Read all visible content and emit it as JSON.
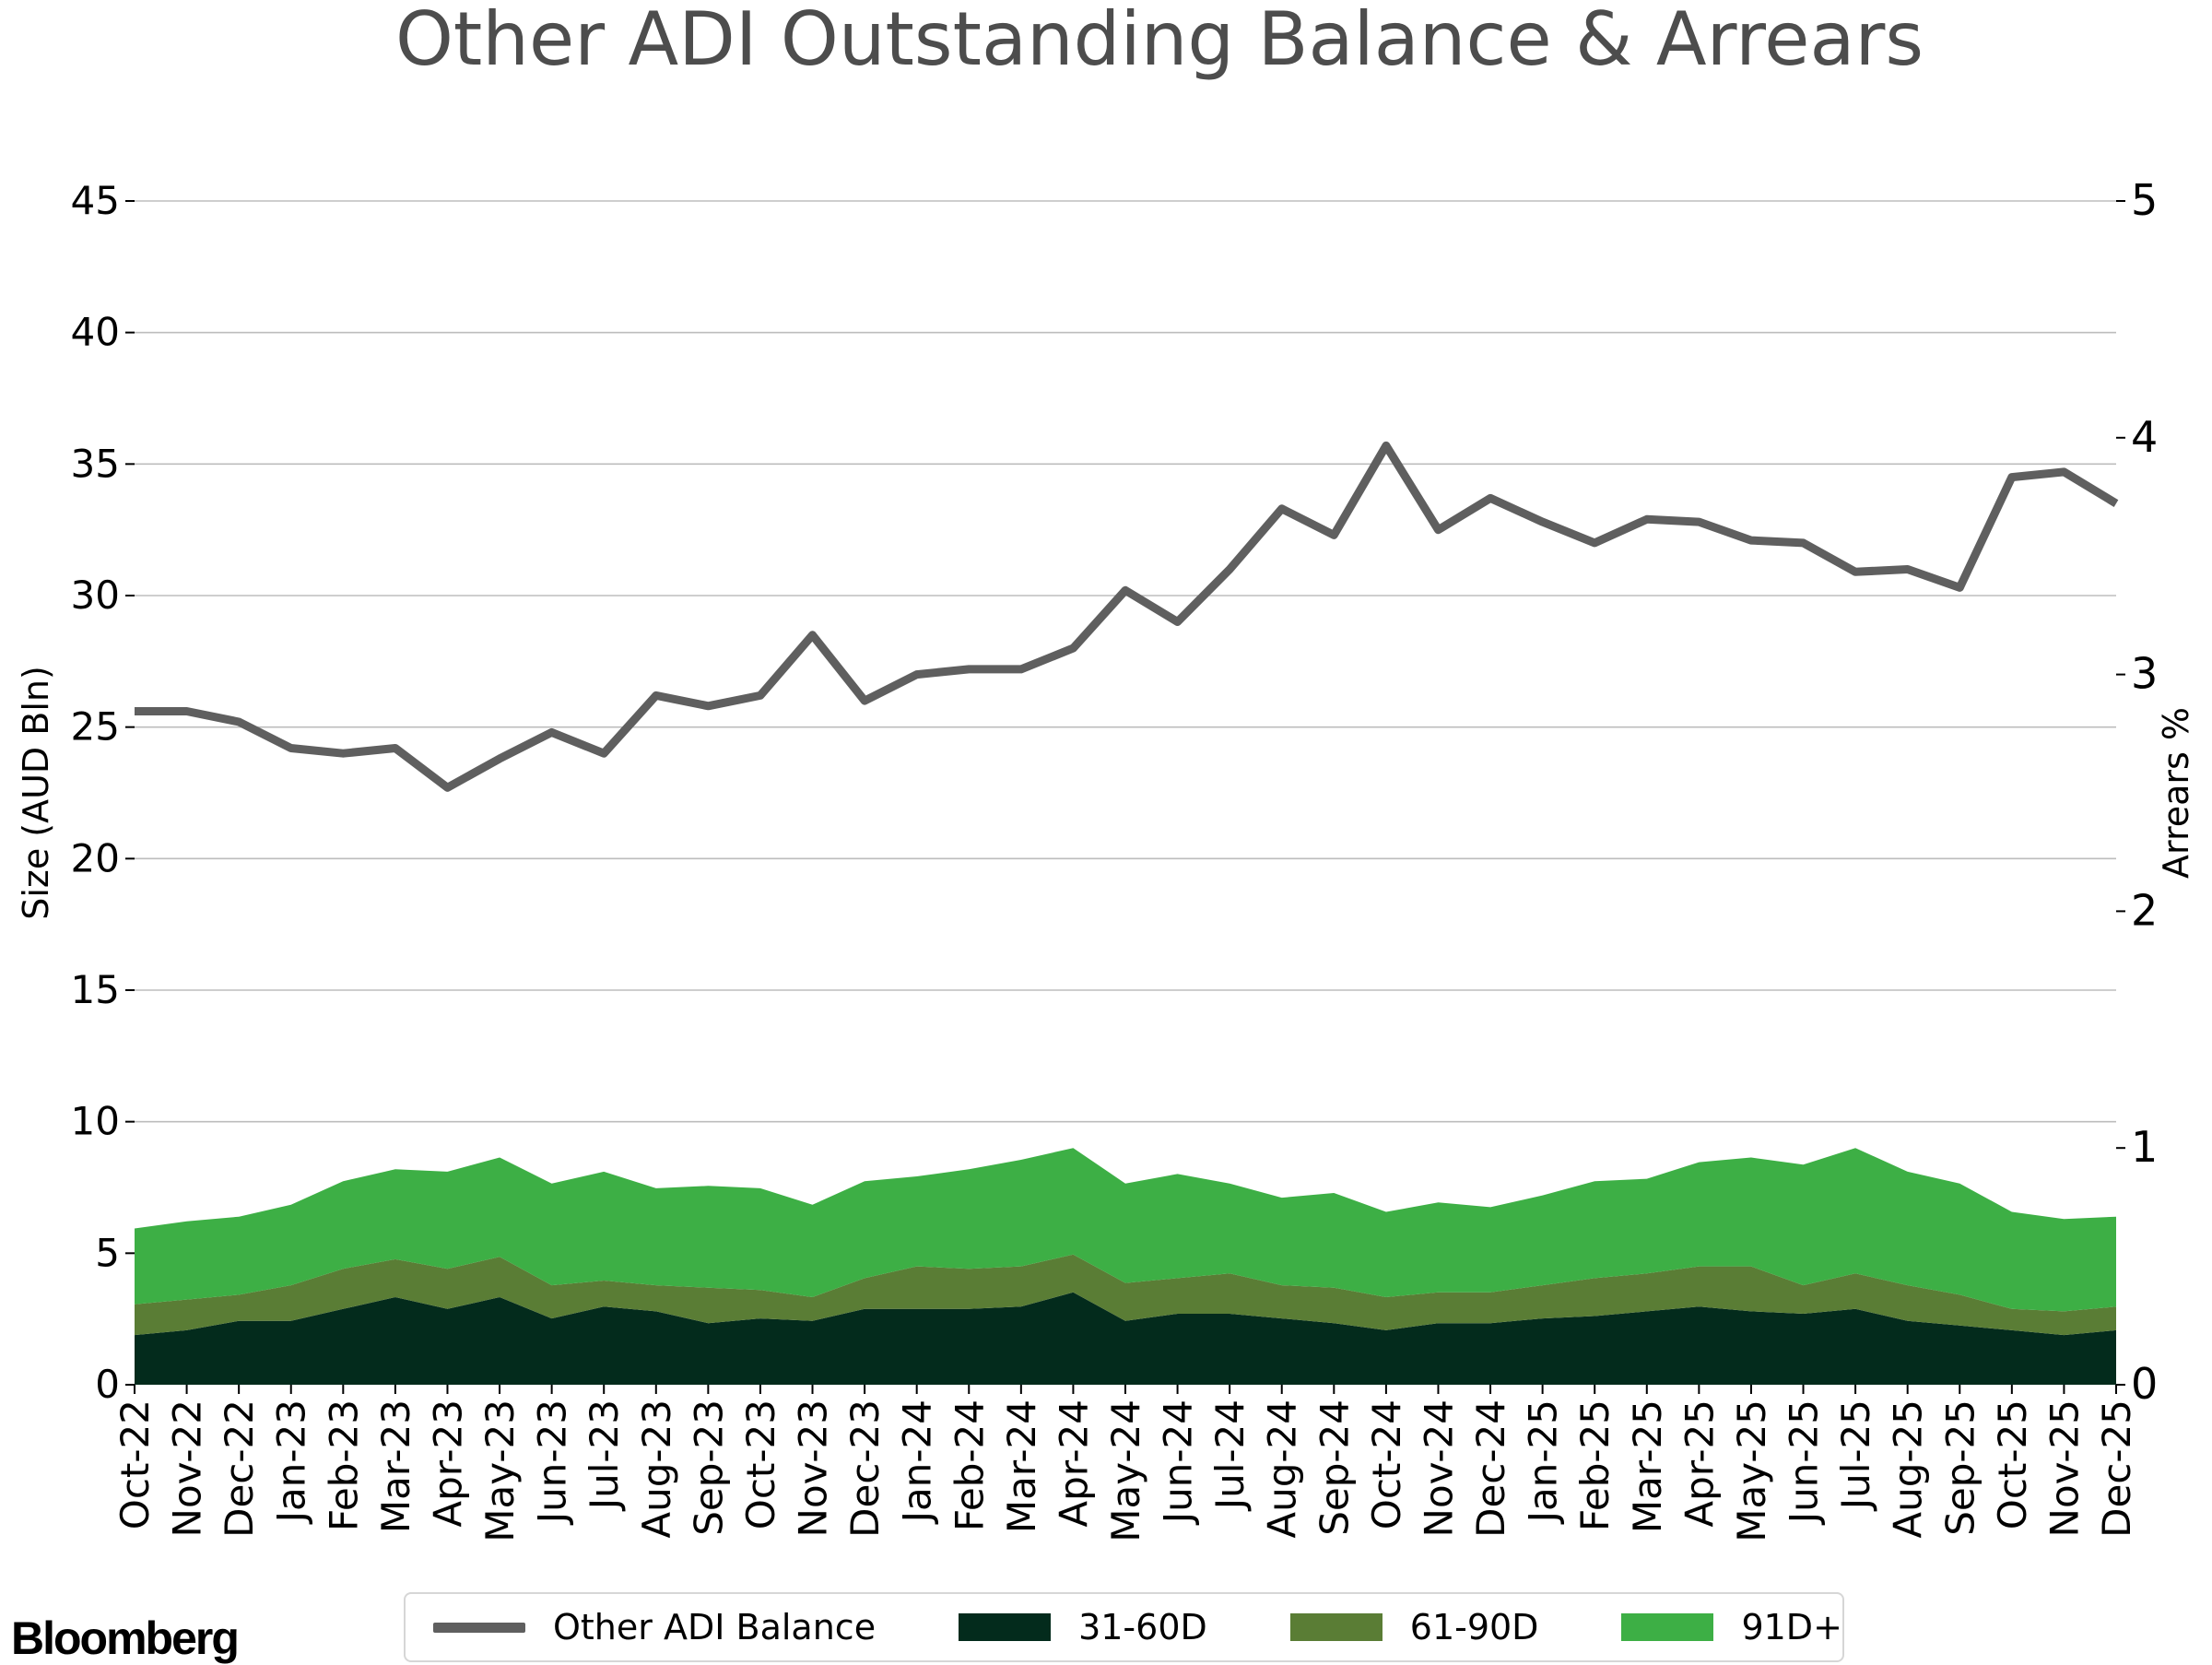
{
  "colors": {
    "balance": "#5f5f5f",
    "d31_60": "#032b1c",
    "d61_90": "#5a7d35",
    "d91_plus": "#3daf45",
    "grid": "#bdbdbd",
    "title": "#4d4d4d"
  },
  "branding": {
    "logo_text": "Bloomberg"
  },
  "legend": {
    "items": [
      {
        "label": "Other ADI Balance",
        "type": "line",
        "color_key": "balance"
      },
      {
        "label": "31-60D",
        "type": "box",
        "color_key": "d31_60"
      },
      {
        "label": "61-90D",
        "type": "box",
        "color_key": "d61_90"
      },
      {
        "label": "91D+",
        "type": "box",
        "color_key": "d91_plus"
      }
    ]
  },
  "chart_data": {
    "type": "line+stacked-area",
    "title": "Other ADI Outstanding Balance & Arrears",
    "ylabel_left": "Size (AUD Bln)",
    "ylabel_right": "Arrears %",
    "ylim_left": [
      0,
      45
    ],
    "ylim_right": [
      0,
      5
    ],
    "yticks_left": [
      0,
      5,
      10,
      15,
      20,
      25,
      30,
      35,
      40,
      45
    ],
    "yticks_right": [
      0,
      1,
      2,
      3,
      4,
      5
    ],
    "grid": true,
    "legend_position": "bottom-center",
    "categories": [
      "Oct-22",
      "Nov-22",
      "Dec-22",
      "Jan-23",
      "Feb-23",
      "Mar-23",
      "Apr-23",
      "May-23",
      "Jun-23",
      "Jul-23",
      "Aug-23",
      "Sep-23",
      "Oct-23",
      "Nov-23",
      "Dec-23",
      "Jan-24",
      "Feb-24",
      "Mar-24",
      "Apr-24",
      "May-24",
      "Jun-24",
      "Jul-24",
      "Aug-24",
      "Sep-24",
      "Oct-24",
      "Nov-24",
      "Dec-24",
      "Jan-25",
      "Feb-25",
      "Mar-25",
      "Apr-25",
      "May-25",
      "Jun-25",
      "Jul-25",
      "Aug-25",
      "Sep-25",
      "Oct-25",
      "Nov-25",
      "Dec-25"
    ],
    "series": [
      {
        "name": "Other ADI Balance",
        "axis": "left",
        "kind": "line",
        "values": [
          25.6,
          25.6,
          25.2,
          24.2,
          24.0,
          24.2,
          22.7,
          23.8,
          24.8,
          24.0,
          26.2,
          25.8,
          26.2,
          28.5,
          26.0,
          27.0,
          27.2,
          27.2,
          28.0,
          30.2,
          29.0,
          31.0,
          33.3,
          32.3,
          35.7,
          32.5,
          33.7,
          32.8,
          32.0,
          32.9,
          32.8,
          32.1,
          32.0,
          30.9,
          31.0,
          30.3,
          34.5,
          34.7,
          33.5
        ]
      },
      {
        "name": "31-60D",
        "axis": "right",
        "kind": "stacked-area",
        "values": [
          0.21,
          0.23,
          0.27,
          0.27,
          0.32,
          0.37,
          0.32,
          0.37,
          0.28,
          0.33,
          0.31,
          0.26,
          0.28,
          0.27,
          0.32,
          0.32,
          0.32,
          0.33,
          0.39,
          0.27,
          0.3,
          0.3,
          0.28,
          0.26,
          0.23,
          0.26,
          0.26,
          0.28,
          0.29,
          0.31,
          0.33,
          0.31,
          0.3,
          0.32,
          0.27,
          0.25,
          0.23,
          0.21,
          0.23
        ]
      },
      {
        "name": "61-90D",
        "axis": "right",
        "kind": "stacked-area",
        "values": [
          0.13,
          0.13,
          0.11,
          0.15,
          0.17,
          0.16,
          0.17,
          0.17,
          0.14,
          0.11,
          0.11,
          0.15,
          0.12,
          0.1,
          0.13,
          0.18,
          0.17,
          0.17,
          0.16,
          0.16,
          0.15,
          0.17,
          0.14,
          0.15,
          0.14,
          0.13,
          0.13,
          0.14,
          0.16,
          0.16,
          0.17,
          0.19,
          0.12,
          0.15,
          0.15,
          0.13,
          0.09,
          0.1,
          0.1
        ]
      },
      {
        "name": "91D+",
        "axis": "right",
        "kind": "stacked-area",
        "values": [
          0.32,
          0.33,
          0.33,
          0.34,
          0.37,
          0.38,
          0.41,
          0.42,
          0.43,
          0.46,
          0.41,
          0.43,
          0.43,
          0.39,
          0.41,
          0.38,
          0.42,
          0.45,
          0.45,
          0.42,
          0.44,
          0.38,
          0.37,
          0.4,
          0.36,
          0.38,
          0.36,
          0.38,
          0.41,
          0.4,
          0.44,
          0.46,
          0.51,
          0.53,
          0.48,
          0.47,
          0.41,
          0.39,
          0.38
        ]
      }
    ]
  }
}
